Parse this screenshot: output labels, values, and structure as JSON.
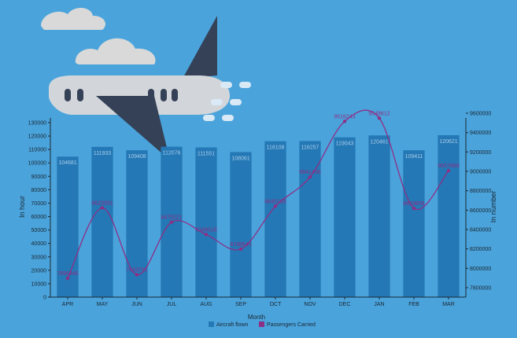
{
  "colors": {
    "background": "#4aa3db",
    "bar": "#2478b5",
    "line": "#8e2f86",
    "bar_label": "#a9cdea",
    "axis_text": "#1b2733",
    "cloud": "#d9d9d9",
    "plane_body": "#d2d6da",
    "plane_wing": "#354157"
  },
  "chart_data": {
    "type": "bar",
    "categories": [
      "APR",
      "MAY",
      "JUN",
      "JUL",
      "AUG",
      "SEP",
      "OCT",
      "NOV",
      "DEC",
      "JAN",
      "FEB",
      "MAR"
    ],
    "xlabel": "Month",
    "ylabel": "In hour",
    "y2label": "In number",
    "ylim": [
      0,
      130000
    ],
    "y2lim": [
      7800000,
      9600000
    ],
    "y_ticks": [
      "0",
      "10000",
      "20000",
      "30000",
      "40000",
      "50000",
      "60000",
      "70000",
      "80000",
      "90000",
      "100000",
      "110000",
      "120000",
      "130000"
    ],
    "y2_ticks": [
      "7800000",
      "8000000",
      "8200000",
      "8400000",
      "8600000",
      "8800000",
      "9000000",
      "9200000",
      "9400000",
      "9600000"
    ],
    "series": [
      {
        "name": "Aircraft flown",
        "kind": "bar",
        "axis": "left",
        "values": [
          104681,
          111933,
          109408,
          112076,
          111551,
          108061,
          116108,
          116257,
          119043,
          120461,
          109411,
          120621
        ],
        "labels": [
          "104681",
          "111933",
          "109408",
          "112076",
          "111551",
          "108061",
          "116108",
          "116257",
          "119043",
          "120461",
          "109411",
          "120621"
        ]
      },
      {
        "name": "Passengers Carried",
        "kind": "line",
        "axis": "right",
        "values": [
          7896940,
          8623381,
          7933751,
          8475221,
          8348518,
          8198645,
          8640183,
          8941496,
          9516243,
          9548612,
          8618856,
          9007889
        ],
        "labels": [
          "7896940",
          "8623381",
          "7933751",
          "8475221",
          "8348518",
          "8198645",
          "8640183",
          "8941496",
          "9516243",
          "9548612",
          "8618856",
          "9007889"
        ]
      }
    ],
    "legend": "bottom-center",
    "grid": false
  }
}
